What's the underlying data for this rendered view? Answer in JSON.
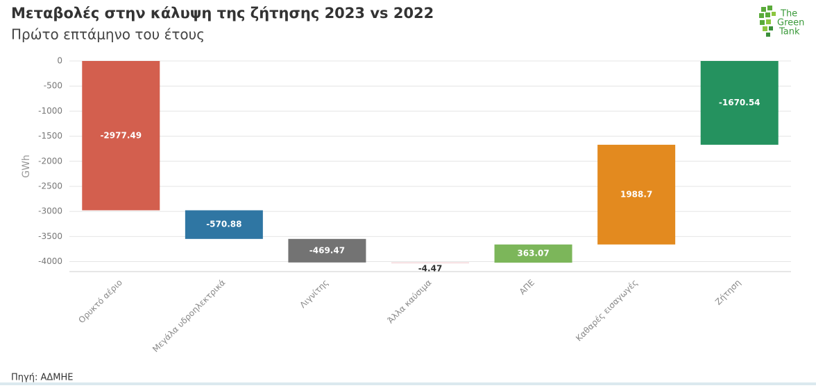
{
  "chart_data": {
    "type": "waterfall",
    "title": "Μεταβολές στην κάλυψη της ζήτησης 2023 vs 2022",
    "subtitle": "Πρώτο επτάμηνο του έτους",
    "y_label": "GWh",
    "categories": [
      "Ορυκτό αέριο",
      "Μεγάλα υδροηλεκτρικά",
      "Λιγνίτης",
      "Άλλα καύσιμα",
      "ΑΠΕ",
      "Καθαρές εισαγωγές",
      "Ζήτηση"
    ],
    "values": [
      -2977.49,
      -570.88,
      -469.47,
      -4.47,
      363.07,
      1988.7,
      -1670.54
    ],
    "measure": [
      "relative",
      "relative",
      "relative",
      "relative",
      "relative",
      "relative",
      "total"
    ],
    "colors": [
      "#d35f4e",
      "#2f76a3",
      "#737373",
      "#f0c4c8",
      "#7cb65a",
      "#e38a1f",
      "#25925f"
    ],
    "ylim": [
      -4200,
      0
    ],
    "yticks": [
      0,
      -500,
      -1000,
      -1500,
      -2000,
      -2500,
      -3000,
      -3500,
      -4000
    ],
    "grid": true
  },
  "source": "Πηγή: ΑΔΜΗΕ",
  "logo": [
    "The",
    "Green",
    "Tank"
  ]
}
